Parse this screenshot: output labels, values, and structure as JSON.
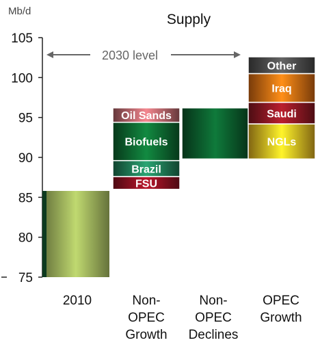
{
  "chart_data": {
    "type": "waterfall",
    "title": "Supply",
    "ylabel": "Mb/d",
    "ylim": [
      75,
      105
    ],
    "yticks": [
      75,
      80,
      85,
      90,
      95,
      100,
      105
    ],
    "grid": false,
    "categories": [
      "2010",
      "Non-OPEC Growth",
      "Non-OPEC Declines",
      "OPEC Growth"
    ],
    "category_lines": [
      [
        "2010"
      ],
      [
        "Non-",
        "OPEC",
        "Growth"
      ],
      [
        "Non-",
        "OPEC",
        "Declines"
      ],
      [
        "OPEC",
        "Growth"
      ]
    ],
    "annotation": "2030 level",
    "bars": [
      {
        "category": "2010",
        "segments": [
          {
            "label": "",
            "base": 75,
            "top": 85.8,
            "color": "#b7cf6b"
          }
        ]
      },
      {
        "category": "Non-OPEC Growth",
        "segments": [
          {
            "label": "FSU",
            "base": 86.0,
            "top": 87.6,
            "color": "#8a1020"
          },
          {
            "label": "Brazil",
            "base": 87.6,
            "top": 89.6,
            "color": "#1f7a55"
          },
          {
            "label": "Biofuels",
            "base": 89.6,
            "top": 94.4,
            "color": "#0d6630"
          },
          {
            "label": "Oil Sands",
            "base": 94.4,
            "top": 96.2,
            "color": "#b5646a"
          }
        ]
      },
      {
        "category": "Non-OPEC Declines",
        "segments": [
          {
            "label": "",
            "base": 89.8,
            "top": 96.2,
            "color": "#0b5a2c"
          }
        ]
      },
      {
        "category": "OPEC Growth",
        "segments": [
          {
            "label": "NGLs",
            "base": 89.8,
            "top": 94.2,
            "color": "#e8b520"
          },
          {
            "label": "Saudi",
            "base": 94.2,
            "top": 96.9,
            "color": "#8a1722"
          },
          {
            "label": "Iraq",
            "base": 96.9,
            "top": 100.5,
            "color": "#d86a12"
          },
          {
            "label": "Other",
            "base": 100.5,
            "top": 102.6,
            "color": "#4a4a4a"
          }
        ]
      }
    ]
  }
}
